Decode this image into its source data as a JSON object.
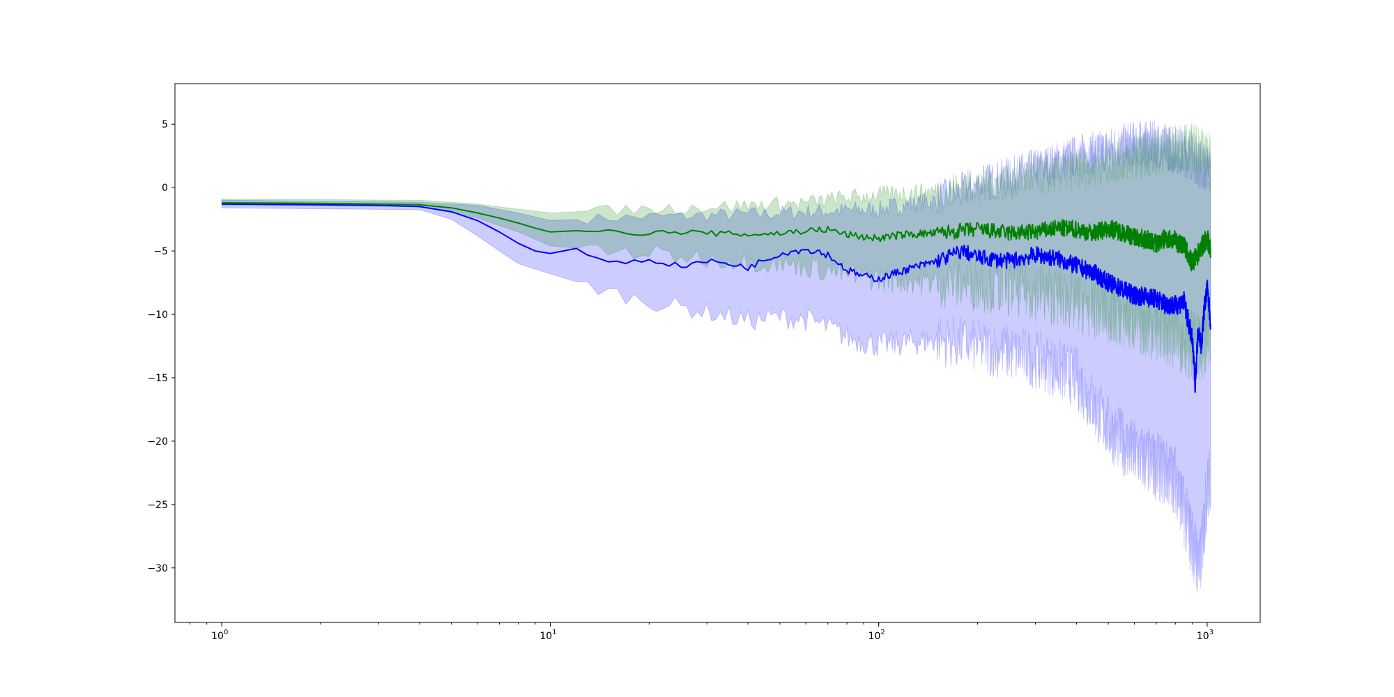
{
  "chart_data": {
    "type": "line",
    "title": "",
    "xlabel": "",
    "ylabel": "",
    "xscale": "log",
    "xlim": [
      0.72,
      1450
    ],
    "ylim": [
      -34.3,
      8.2
    ],
    "grid": false,
    "legend": "none",
    "x_ticks": [
      {
        "value": 1,
        "base": "10",
        "exp": "0"
      },
      {
        "value": 10,
        "base": "10",
        "exp": "1"
      },
      {
        "value": 100,
        "base": "10",
        "exp": "2"
      },
      {
        "value": 1000,
        "base": "10",
        "exp": "3"
      }
    ],
    "y_ticks": [
      {
        "value": 5,
        "label": "5"
      },
      {
        "value": 0,
        "label": "0"
      },
      {
        "value": -5,
        "label": "−5"
      },
      {
        "value": -10,
        "label": "−10"
      },
      {
        "value": -15,
        "label": "−15"
      },
      {
        "value": -20,
        "label": "−20"
      },
      {
        "value": -25,
        "label": "−25"
      },
      {
        "value": -30,
        "label": "−30"
      }
    ],
    "series": [
      {
        "color": "#0000ff",
        "line": [
          [
            1,
            -1.3
          ],
          [
            2,
            -1.35
          ],
          [
            3,
            -1.4
          ],
          [
            4,
            -1.5
          ],
          [
            5,
            -1.9
          ],
          [
            6,
            -2.6
          ],
          [
            7,
            -3.5
          ],
          [
            8,
            -4.4
          ],
          [
            9,
            -5.0
          ],
          [
            10,
            -5.2
          ],
          [
            12,
            -4.8
          ],
          [
            14,
            -5.6
          ],
          [
            17,
            -5.9
          ],
          [
            20,
            -5.7
          ],
          [
            25,
            -6.2
          ],
          [
            30,
            -5.8
          ],
          [
            35,
            -6.0
          ],
          [
            40,
            -6.3
          ],
          [
            45,
            -5.7
          ],
          [
            50,
            -5.2
          ],
          [
            55,
            -5.0
          ],
          [
            60,
            -4.9
          ],
          [
            65,
            -5.0
          ],
          [
            70,
            -5.3
          ],
          [
            80,
            -6.5
          ],
          [
            90,
            -7.0
          ],
          [
            100,
            -7.2
          ],
          [
            120,
            -6.5
          ],
          [
            150,
            -5.8
          ],
          [
            180,
            -5.0
          ],
          [
            200,
            -5.5
          ],
          [
            250,
            -5.8
          ],
          [
            300,
            -5.3
          ],
          [
            350,
            -5.6
          ],
          [
            400,
            -6.2
          ],
          [
            450,
            -6.7
          ],
          [
            500,
            -7.5
          ],
          [
            550,
            -8.0
          ],
          [
            600,
            -8.5
          ],
          [
            650,
            -8.6
          ],
          [
            700,
            -8.8
          ],
          [
            750,
            -9.2
          ],
          [
            800,
            -9.3
          ],
          [
            850,
            -9.0
          ],
          [
            900,
            -12.0
          ],
          [
            920,
            -15.5
          ],
          [
            940,
            -11.0
          ],
          [
            960,
            -12.5
          ],
          [
            980,
            -9.5
          ],
          [
            1000,
            -8.0
          ],
          [
            1024,
            -10.5
          ]
        ],
        "band_upper": [
          [
            1,
            -1.0
          ],
          [
            4,
            -1.15
          ],
          [
            6,
            -1.4
          ],
          [
            8,
            -2.0
          ],
          [
            10,
            -2.6
          ],
          [
            15,
            -2.4
          ],
          [
            20,
            -2.3
          ],
          [
            30,
            -2.2
          ],
          [
            40,
            -2.1
          ],
          [
            50,
            -2.0
          ],
          [
            60,
            -1.9
          ],
          [
            80,
            -1.8
          ],
          [
            100,
            -1.7
          ],
          [
            150,
            -1.0
          ],
          [
            200,
            0.2
          ],
          [
            300,
            1.5
          ],
          [
            400,
            2.5
          ],
          [
            500,
            3.0
          ],
          [
            600,
            3.5
          ],
          [
            700,
            3.4
          ],
          [
            800,
            3.0
          ],
          [
            900,
            2.5
          ],
          [
            950,
            1.8
          ],
          [
            1000,
            1.5
          ],
          [
            1024,
            1.2
          ]
        ],
        "band_lower": [
          [
            1,
            -1.6
          ],
          [
            4,
            -1.75
          ],
          [
            5,
            -2.5
          ],
          [
            6,
            -3.8
          ],
          [
            7,
            -5.0
          ],
          [
            8,
            -6.0
          ],
          [
            10,
            -6.8
          ],
          [
            15,
            -8.2
          ],
          [
            20,
            -9.0
          ],
          [
            30,
            -9.8
          ],
          [
            40,
            -10.5
          ],
          [
            50,
            -10.2
          ],
          [
            60,
            -10.4
          ],
          [
            70,
            -11.0
          ],
          [
            80,
            -11.8
          ],
          [
            100,
            -12.4
          ],
          [
            150,
            -12.0
          ],
          [
            200,
            -12.5
          ],
          [
            300,
            -13.5
          ],
          [
            400,
            -15.0
          ],
          [
            500,
            -19.0
          ],
          [
            600,
            -21.0
          ],
          [
            700,
            -22.0
          ],
          [
            800,
            -23.0
          ],
          [
            900,
            -28.0
          ],
          [
            950,
            -30.0
          ],
          [
            1000,
            -24.0
          ],
          [
            1024,
            -23.0
          ]
        ]
      },
      {
        "color": "#008000",
        "line": [
          [
            1,
            -1.2
          ],
          [
            2,
            -1.25
          ],
          [
            3,
            -1.3
          ],
          [
            4,
            -1.35
          ],
          [
            5,
            -1.6
          ],
          [
            6,
            -2.0
          ],
          [
            7,
            -2.4
          ],
          [
            8,
            -2.8
          ],
          [
            9,
            -3.2
          ],
          [
            10,
            -3.5
          ],
          [
            12,
            -3.4
          ],
          [
            15,
            -3.5
          ],
          [
            20,
            -3.6
          ],
          [
            25,
            -3.5
          ],
          [
            30,
            -3.6
          ],
          [
            40,
            -3.7
          ],
          [
            50,
            -3.6
          ],
          [
            60,
            -3.4
          ],
          [
            70,
            -3.3
          ],
          [
            80,
            -3.7
          ],
          [
            90,
            -3.9
          ],
          [
            100,
            -4.0
          ],
          [
            120,
            -3.7
          ],
          [
            150,
            -3.6
          ],
          [
            180,
            -3.4
          ],
          [
            200,
            -3.3
          ],
          [
            250,
            -3.6
          ],
          [
            300,
            -3.5
          ],
          [
            350,
            -3.2
          ],
          [
            400,
            -3.3
          ],
          [
            450,
            -3.6
          ],
          [
            500,
            -3.2
          ],
          [
            550,
            -3.5
          ],
          [
            600,
            -3.9
          ],
          [
            650,
            -4.1
          ],
          [
            700,
            -4.4
          ],
          [
            750,
            -4.0
          ],
          [
            800,
            -4.2
          ],
          [
            850,
            -4.6
          ],
          [
            900,
            -6.0
          ],
          [
            940,
            -5.2
          ],
          [
            980,
            -4.3
          ],
          [
            1000,
            -4.0
          ],
          [
            1024,
            -5.0
          ]
        ],
        "band_upper": [
          [
            1,
            -0.9
          ],
          [
            4,
            -1.0
          ],
          [
            6,
            -1.3
          ],
          [
            8,
            -1.7
          ],
          [
            10,
            -2.0
          ],
          [
            15,
            -1.8
          ],
          [
            20,
            -1.7
          ],
          [
            30,
            -1.5
          ],
          [
            40,
            -1.4
          ],
          [
            50,
            -1.3
          ],
          [
            60,
            -1.2
          ],
          [
            80,
            -0.8
          ],
          [
            100,
            -0.6
          ],
          [
            150,
            -0.3
          ],
          [
            200,
            0.2
          ],
          [
            300,
            0.9
          ],
          [
            400,
            1.5
          ],
          [
            500,
            2.0
          ],
          [
            600,
            2.5
          ],
          [
            700,
            2.8
          ],
          [
            800,
            3.0
          ],
          [
            900,
            3.2
          ],
          [
            950,
            3.0
          ],
          [
            1000,
            2.6
          ],
          [
            1024,
            2.4
          ]
        ],
        "band_lower": [
          [
            1,
            -1.4
          ],
          [
            4,
            -1.5
          ],
          [
            6,
            -2.4
          ],
          [
            8,
            -3.5
          ],
          [
            10,
            -4.6
          ],
          [
            15,
            -5.0
          ],
          [
            20,
            -5.2
          ],
          [
            30,
            -5.6
          ],
          [
            40,
            -5.8
          ],
          [
            50,
            -6.0
          ],
          [
            60,
            -6.2
          ],
          [
            80,
            -6.8
          ],
          [
            100,
            -7.2
          ],
          [
            150,
            -7.4
          ],
          [
            200,
            -7.6
          ],
          [
            300,
            -8.2
          ],
          [
            400,
            -9.0
          ],
          [
            500,
            -9.8
          ],
          [
            600,
            -10.5
          ],
          [
            700,
            -11.0
          ],
          [
            800,
            -11.5
          ],
          [
            900,
            -12.5
          ],
          [
            950,
            -13.0
          ],
          [
            1000,
            -11.5
          ],
          [
            1024,
            -11.0
          ]
        ]
      }
    ]
  }
}
